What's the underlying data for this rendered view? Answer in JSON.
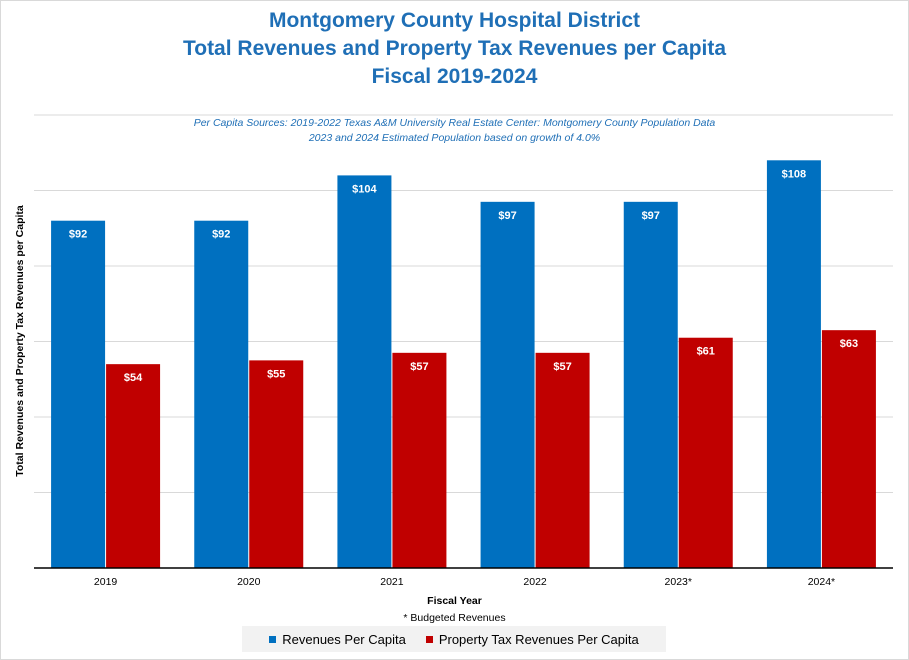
{
  "chart_data": {
    "type": "bar",
    "title_lines": [
      "Montgomery County Hospital District",
      "Total Revenues and Property Tax Revenues per Capita",
      "Fiscal 2019-2024"
    ],
    "subtitle_lines": [
      "Per Capita Sources: 2019-2022 Texas A&M University Real Estate Center: Montgomery County Population Data",
      "2023 and 2024 Estimated Population based on growth of 4.0%"
    ],
    "categories": [
      "2019",
      "2020",
      "2021",
      "2022",
      "2023*",
      "2024*"
    ],
    "series": [
      {
        "name": "Revenues Per Capita",
        "color": "#0070c0",
        "values": [
          92,
          92,
          104,
          97,
          97,
          108
        ],
        "labels": [
          "$92",
          "$92",
          "$104",
          "$97",
          "$97",
          "$108"
        ]
      },
      {
        "name": "Property Tax Revenues Per Capita",
        "color": "#c00000",
        "values": [
          54,
          55,
          57,
          57,
          61,
          63
        ],
        "labels": [
          "$54",
          "$55",
          "$57",
          "$57",
          "$61",
          "$63"
        ]
      }
    ],
    "xlabel": "Fiscal Year",
    "ylabel": "Total Revenues and  Property Tax Revenues  per Capita",
    "note": "* Budgeted Revenues",
    "ylim": [
      0,
      120
    ],
    "y_gridline_step": 20,
    "grid": true,
    "legend_position": "bottom"
  }
}
